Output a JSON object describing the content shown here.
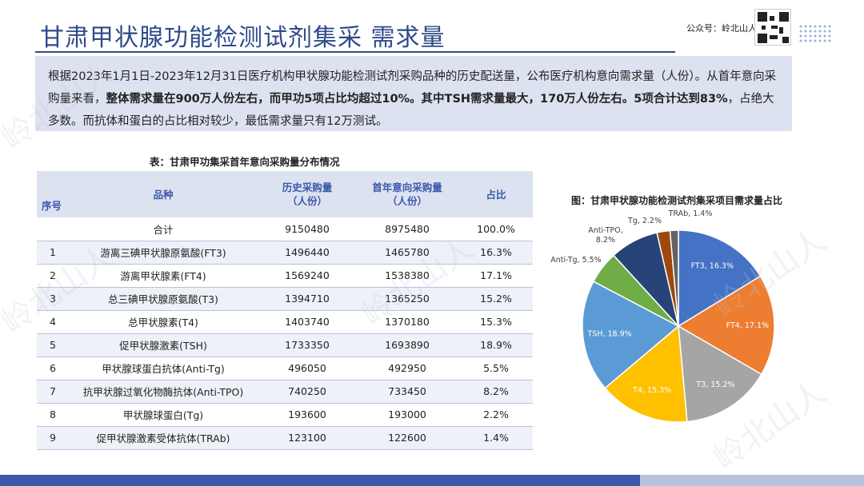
{
  "header": {
    "title": "甘肃甲状腺功能检测试剂集采  需求量",
    "account_label": "公众号：岭北山人"
  },
  "summary": {
    "part1": "根据2023年1月1日-2023年12月31日医疗机构甲状腺功能检测试剂采购品种的历史配送量，公布医疗机构意向需求量（人份）。从首年意向采购量来看，",
    "bold1": "整体需求量在900万人份左右，而甲功5项占比均超过10%。其中TSH需求量最大，170万人份左右。5项合计达到83%",
    "part2": "，占绝大多数。而抗体和蛋白的占比相对较少，最低需求量只有12万测试。"
  },
  "table": {
    "caption": "表：甘肃甲功集采首年意向采购量分布情况",
    "headers": {
      "seq": "序号",
      "name": "品种",
      "hist_line1": "历史采购量",
      "hist_line2": "（人份）",
      "intent_line1": "首年意向采购量",
      "intent_line2": "（人份）",
      "pct": "占比"
    },
    "total": {
      "name": "合计",
      "hist": "9150480",
      "intent": "8975480",
      "pct": "100.0%"
    },
    "rows": [
      {
        "seq": "1",
        "name": "游离三碘甲状腺原氨酸(FT3)",
        "hist": "1496440",
        "intent": "1465780",
        "pct": "16.3%"
      },
      {
        "seq": "2",
        "name": "游离甲状腺素(FT4)",
        "hist": "1569240",
        "intent": "1538380",
        "pct": "17.1%"
      },
      {
        "seq": "3",
        "name": "总三碘甲状腺原氨酸(T3)",
        "hist": "1394710",
        "intent": "1365250",
        "pct": "15.2%"
      },
      {
        "seq": "4",
        "name": "总甲状腺素(T4)",
        "hist": "1403740",
        "intent": "1370180",
        "pct": "15.3%"
      },
      {
        "seq": "5",
        "name": "促甲状腺激素(TSH)",
        "hist": "1733350",
        "intent": "1693890",
        "pct": "18.9%"
      },
      {
        "seq": "6",
        "name": "甲状腺球蛋白抗体(Anti-Tg)",
        "hist": "496050",
        "intent": "492950",
        "pct": "5.5%"
      },
      {
        "seq": "7",
        "name": "抗甲状腺过氧化物酶抗体(Anti-TPO)",
        "hist": "740250",
        "intent": "733450",
        "pct": "8.2%"
      },
      {
        "seq": "8",
        "name": "甲状腺球蛋白(Tg)",
        "hist": "193600",
        "intent": "193000",
        "pct": "2.2%"
      },
      {
        "seq": "9",
        "name": "促甲状腺激素受体抗体(TRAb)",
        "hist": "123100",
        "intent": "122600",
        "pct": "1.4%"
      }
    ]
  },
  "watermark_text": "岭北山人",
  "chart_data": {
    "type": "pie",
    "title": "图：甘肃甲状腺功能检测试剂集采项目需求量占比",
    "labels": [
      "FT3",
      "FT4",
      "T3",
      "T4",
      "TSH",
      "Anti-Tg",
      "Anti-TPO",
      "Tg",
      "TRAb"
    ],
    "values": [
      16.3,
      17.1,
      15.2,
      15.3,
      18.9,
      5.5,
      8.2,
      2.2,
      1.4
    ],
    "data_labels": [
      "FT3, 16.3%",
      "FT4, 17.1%",
      "T3, 15.2%",
      "T4, 15.3%",
      "TSH, 18.9%",
      "Anti-Tg, 5.5%",
      "Anti-TPO, 8.2%",
      "Tg, 2.2%",
      "TRAb, 1.4%"
    ],
    "colors": [
      "#4472c4",
      "#ed7d31",
      "#a5a5a5",
      "#ffc000",
      "#5b9bd5",
      "#70ad47",
      "#264478",
      "#9e480e",
      "#636363"
    ],
    "legend": "none"
  }
}
